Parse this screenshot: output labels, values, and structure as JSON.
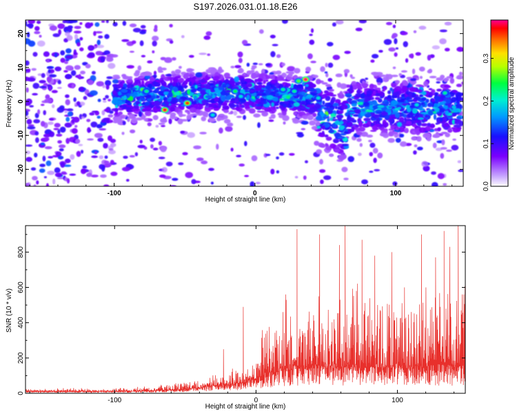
{
  "title": "S197.2026.031.01.18.E26",
  "chart_data": [
    {
      "type": "heatmap",
      "xlabel": "Height of straight line (km)",
      "ylabel": "Frequency (Hz)",
      "xlim": [
        -163,
        148
      ],
      "ylim": [
        -25,
        24
      ],
      "x_ticks": [
        -100,
        0,
        100
      ],
      "y_ticks": [
        -20,
        -10,
        0,
        10,
        20
      ],
      "colorbar": {
        "label": "Normalized spectral amplitude",
        "range": [
          0,
          0.39
        ],
        "ticks": [
          0.0,
          0.1,
          0.2,
          0.3
        ]
      },
      "band_description": "noise-dominated below about -100 km; concentrated energy near 0 Hz from -100 km upward",
      "hotspots": [
        {
          "x": -80,
          "y": 3.5,
          "v": 0.26
        },
        {
          "x": -77,
          "y": 3.0,
          "v": 0.22
        },
        {
          "x": -64,
          "y": -2.5,
          "v": 0.38
        },
        {
          "x": -48,
          "y": -0.5,
          "v": 0.36
        },
        {
          "x": -30,
          "y": -4.0,
          "v": 0.2
        },
        {
          "x": -14,
          "y": 3.0,
          "v": 0.24
        },
        {
          "x": -10,
          "y": 1.5,
          "v": 0.2
        },
        {
          "x": 20,
          "y": 3.5,
          "v": 0.22
        },
        {
          "x": 28,
          "y": 3.0,
          "v": 0.22
        },
        {
          "x": 36,
          "y": 6.5,
          "v": 0.39
        },
        {
          "x": 31,
          "y": 6.0,
          "v": 0.26
        },
        {
          "x": 45,
          "y": 1.0,
          "v": 0.2
        },
        {
          "x": 115,
          "y": -1.0,
          "v": 0.2
        },
        {
          "x": 135,
          "y": 2.5,
          "v": 0.22
        }
      ]
    },
    {
      "type": "line",
      "xlabel": "Height of straight line (km)",
      "ylabel": "SNR (10 * v/v)",
      "xlim": [
        -163,
        148
      ],
      "ylim": [
        0,
        950
      ],
      "x_ticks": [
        -100,
        0,
        100
      ],
      "y_ticks": [
        0,
        200,
        400,
        600,
        800
      ],
      "color": "#e8302c",
      "envelope": {
        "x": [
          -163,
          -100,
          -80,
          -60,
          -40,
          -30,
          -20,
          -10,
          0,
          5,
          10,
          20,
          30,
          40,
          60,
          80,
          100,
          120,
          140,
          148
        ],
        "base": [
          10,
          10,
          12,
          18,
          28,
          40,
          45,
          55,
          80,
          95,
          110,
          130,
          135,
          140,
          140,
          140,
          140,
          140,
          140,
          140
        ],
        "amplitude": [
          20,
          22,
          30,
          40,
          55,
          90,
          110,
          150,
          240,
          300,
          360,
          420,
          470,
          500,
          500,
          500,
          500,
          500,
          500,
          500
        ]
      },
      "peaks": [
        {
          "x": -23,
          "y": 250
        },
        {
          "x": -9,
          "y": 490
        },
        {
          "x": 19,
          "y": 460
        },
        {
          "x": 21,
          "y": 560
        },
        {
          "x": 29,
          "y": 930
        },
        {
          "x": 45,
          "y": 900
        },
        {
          "x": 59,
          "y": 840
        },
        {
          "x": 63,
          "y": 950
        },
        {
          "x": 71,
          "y": 580
        },
        {
          "x": 75,
          "y": 870
        },
        {
          "x": 84,
          "y": 780
        },
        {
          "x": 96,
          "y": 800
        },
        {
          "x": 105,
          "y": 600
        },
        {
          "x": 117,
          "y": 900
        },
        {
          "x": 127,
          "y": 770
        },
        {
          "x": 133,
          "y": 920
        },
        {
          "x": 137,
          "y": 830
        },
        {
          "x": 143,
          "y": 950
        },
        {
          "x": 147,
          "y": 560
        }
      ]
    }
  ]
}
